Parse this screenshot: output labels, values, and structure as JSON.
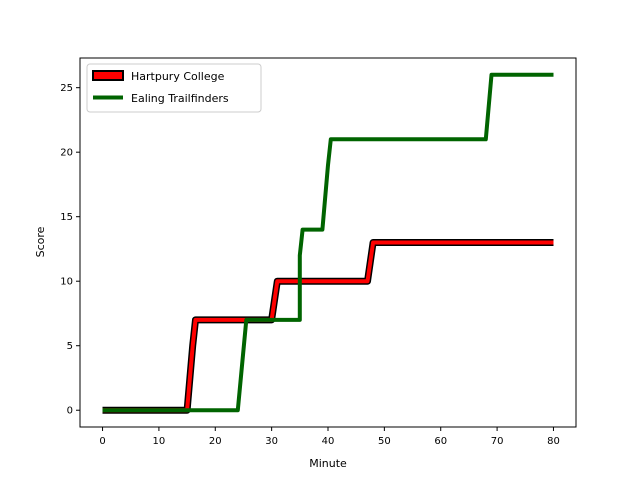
{
  "chart_data": {
    "type": "line",
    "title": "",
    "xlabel": "Minute",
    "ylabel": "Score",
    "xlim": [
      -4,
      84
    ],
    "ylim": [
      -1.3,
      27.3
    ],
    "xticks": [
      0,
      10,
      20,
      30,
      40,
      50,
      60,
      70,
      80
    ],
    "yticks": [
      0,
      5,
      10,
      15,
      20,
      25
    ],
    "grid": false,
    "legend": "top-left",
    "series": [
      {
        "name": "Hartpury College",
        "color": "#ff0000",
        "edge_color": "#000000",
        "points": [
          [
            0,
            0
          ],
          [
            15,
            0
          ],
          [
            16,
            5
          ],
          [
            16.5,
            7
          ],
          [
            30,
            7
          ],
          [
            31,
            10
          ],
          [
            47,
            10
          ],
          [
            48,
            13
          ],
          [
            80,
            13
          ]
        ]
      },
      {
        "name": "Ealing Trailfinders",
        "color": "#006400",
        "points": [
          [
            0,
            0
          ],
          [
            24,
            0
          ],
          [
            25.5,
            7
          ],
          [
            35,
            7
          ],
          [
            35,
            12
          ],
          [
            35.5,
            14
          ],
          [
            39,
            14
          ],
          [
            40,
            19
          ],
          [
            40.5,
            21
          ],
          [
            68,
            21
          ],
          [
            69,
            26
          ],
          [
            80,
            26
          ]
        ]
      }
    ]
  }
}
